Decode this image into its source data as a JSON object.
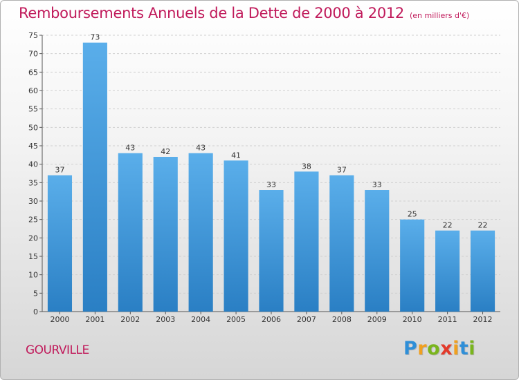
{
  "title": "Remboursements Annuels de la Dette de 2000 à 2012",
  "subtitle": "(en milliers d'€)",
  "place_name": "GOURVILLE",
  "logo": {
    "letters": [
      "P",
      "r",
      "o",
      "x",
      "i",
      "t",
      "i"
    ],
    "colors": [
      "#2f8fd8",
      "#f0a020",
      "#7ab51d",
      "#e33a2b",
      "#f0a020",
      "#2f8fd8",
      "#7ab51d"
    ]
  },
  "colors": {
    "title": "#c0195a",
    "bar_top": "#5aaeea",
    "bar_bottom": "#2a7fc4",
    "grid": "#cfcfcf"
  },
  "chart_data": {
    "type": "bar",
    "categories": [
      "2000",
      "2001",
      "2002",
      "2003",
      "2004",
      "2005",
      "2006",
      "2007",
      "2008",
      "2009",
      "2010",
      "2011",
      "2012"
    ],
    "values": [
      37,
      73,
      43,
      42,
      43,
      41,
      33,
      38,
      37,
      33,
      25,
      22,
      22
    ],
    "ylim": [
      0,
      75
    ],
    "yticks": [
      0,
      5,
      10,
      15,
      20,
      25,
      30,
      35,
      40,
      45,
      50,
      55,
      60,
      65,
      70,
      75
    ],
    "grid": true,
    "legend": "none"
  }
}
